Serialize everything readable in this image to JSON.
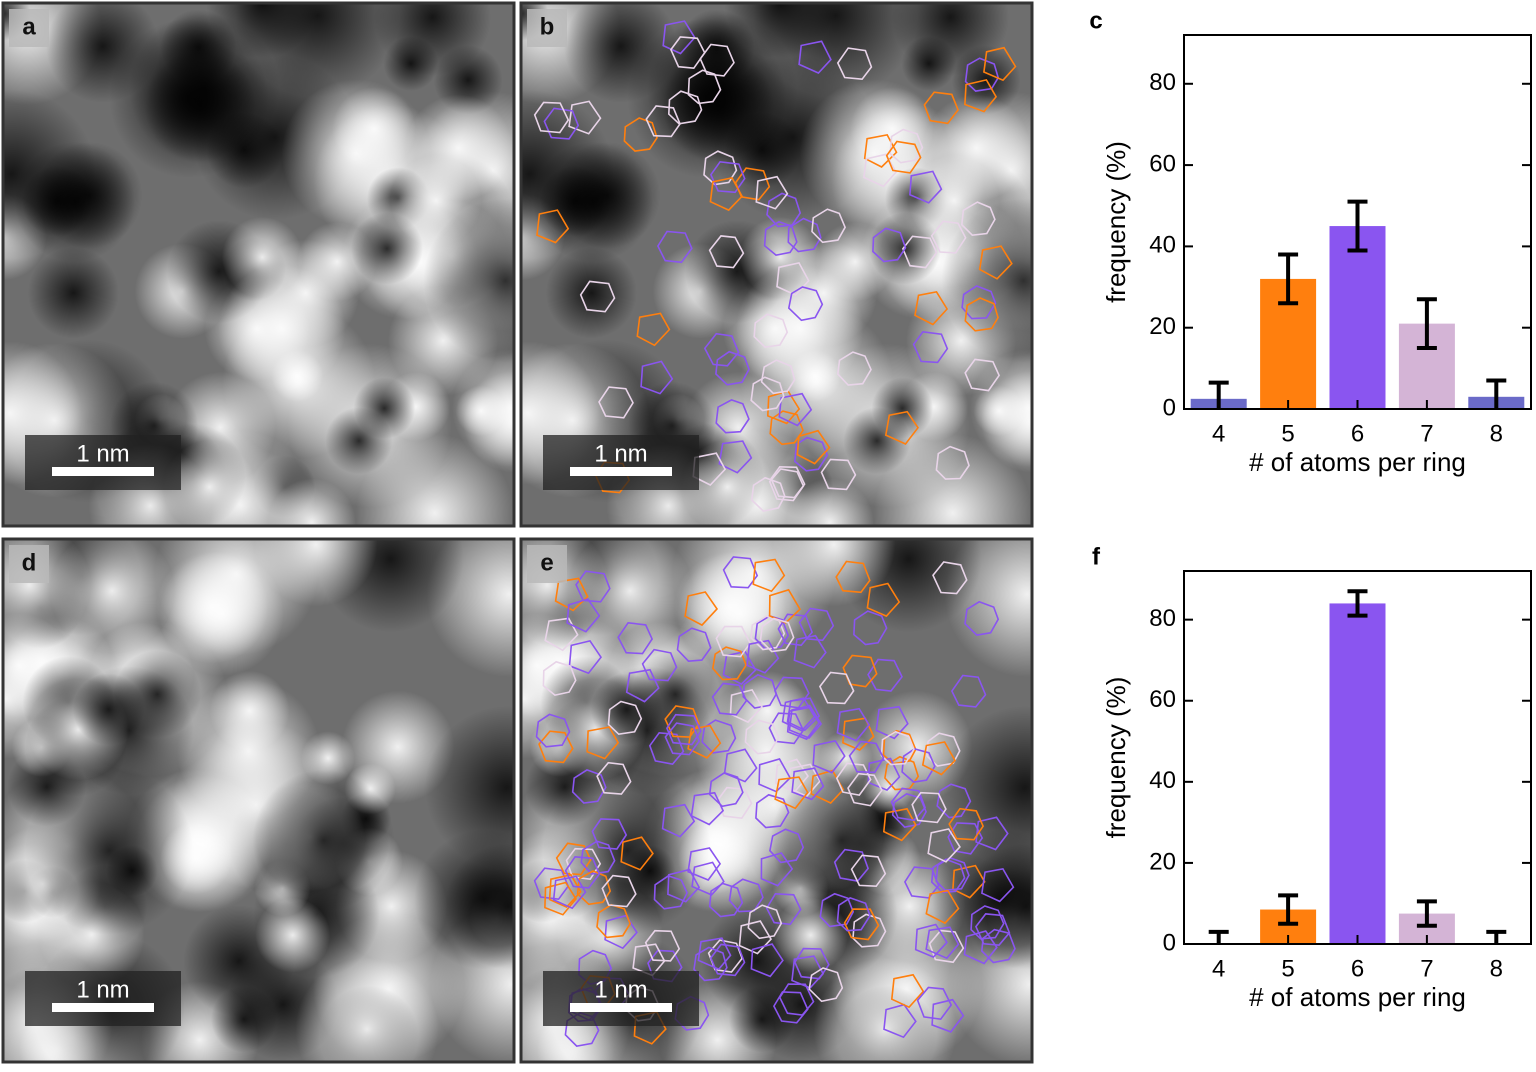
{
  "panels": [
    {
      "label": "a",
      "scale_bar": "1 nm"
    },
    {
      "label": "b",
      "scale_bar": "1 nm"
    },
    {
      "label": "d",
      "scale_bar": "1 nm"
    },
    {
      "label": "e",
      "scale_bar": "1 nm"
    }
  ],
  "chart_data": [
    {
      "type": "bar",
      "panel_label": "c",
      "x_label": "# of atoms per ring",
      "y_label": "frequency (%)",
      "categories": [
        "4",
        "5",
        "6",
        "7",
        "8"
      ],
      "values": [
        2.5,
        32,
        45,
        21,
        3
      ],
      "errors": [
        4,
        6,
        6,
        6,
        4
      ],
      "colors": [
        "#6a6ac8",
        "#ff7f0e",
        "#8a55f0",
        "#d4b4d6",
        "#6a6ac8"
      ],
      "ylim": [
        0,
        92
      ],
      "yticks": [
        0,
        20,
        40,
        60,
        80
      ]
    },
    {
      "type": "bar",
      "panel_label": "f",
      "x_label": "# of atoms per ring",
      "y_label": "frequency (%)",
      "categories": [
        "4",
        "5",
        "6",
        "7",
        "8"
      ],
      "values": [
        0,
        8.5,
        84,
        7.5,
        0
      ],
      "errors": [
        3,
        3.5,
        3,
        3,
        3
      ],
      "colors": [
        "#6a6ac8",
        "#ff7f0e",
        "#8a55f0",
        "#d4b4d6",
        "#6a6ac8"
      ],
      "ylim": [
        0,
        92
      ],
      "yticks": [
        0,
        20,
        40,
        60,
        80
      ]
    }
  ]
}
